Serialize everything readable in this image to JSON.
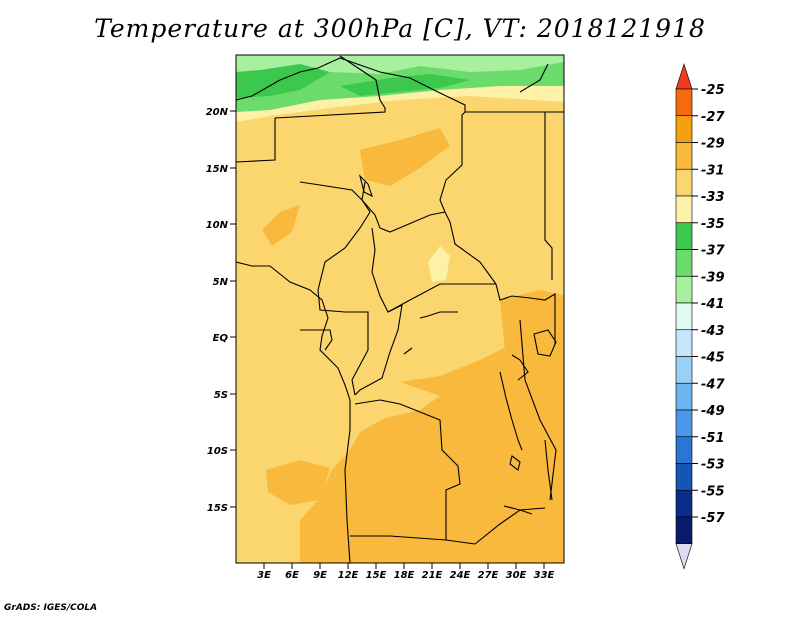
{
  "title": "Temperature at 300hPa [C], VT: 2018121918",
  "credit": "GrADS: IGES/COLA",
  "lat_labels": [
    "20N",
    "15N",
    "10N",
    "5N",
    "EQ",
    "5S",
    "10S",
    "15S"
  ],
  "lon_labels": [
    "3E",
    "6E",
    "9E",
    "12E",
    "15E",
    "18E",
    "21E",
    "24E",
    "27E",
    "30E",
    "33E"
  ],
  "colorbar": {
    "labels": [
      "-25",
      "-27",
      "-29",
      "-31",
      "-33",
      "-35",
      "-37",
      "-39",
      "-41",
      "-43",
      "-45",
      "-47",
      "-49",
      "-51",
      "-53",
      "-55",
      "-57"
    ],
    "colors": [
      "#f03c1c",
      "#f46a0c",
      "#f6a010",
      "#f9b93c",
      "#fbd56e",
      "#fdf1a8",
      "#3cc84c",
      "#6bdc6b",
      "#a8efa0",
      "#e2fbf2",
      "#c6e6fc",
      "#9ad0f6",
      "#6eb6f2",
      "#4a98ec",
      "#2a76d4",
      "#1654b6",
      "#0c2c8c",
      "#0a1a6a",
      "#dcdcf4"
    ]
  },
  "field_colors": {
    "base": "#fbd56e",
    "warm": "#f9b93c",
    "cool": "#fdf1a8",
    "green_light": "#a8efa0",
    "green_mid": "#6bdc6b",
    "green_dark": "#3cc84c"
  }
}
